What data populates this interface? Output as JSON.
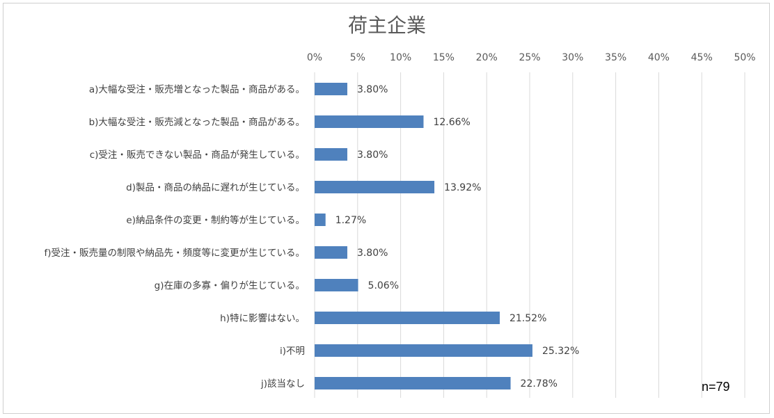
{
  "chart_data": {
    "type": "bar",
    "orientation": "horizontal",
    "title": "荷主企業",
    "categories": [
      "a)大幅な受注・販売増となった製品・商品がある。",
      "b)大幅な受注・販売減となった製品・商品がある。",
      "c)受注・販売できない製品・商品が発生している。",
      "d)製品・商品の納品に遅れが生じている。",
      "e)納品条件の変更・制約等が生じている。",
      "f)受注・販売量の制限や納品先・頻度等に変更が生じている。",
      "g)在庫の多寡・偏りが生じている。",
      "h)特に影響はない。",
      "i)不明",
      "j)該当なし"
    ],
    "values": [
      3.8,
      12.66,
      3.8,
      13.92,
      1.27,
      3.8,
      5.06,
      21.52,
      25.32,
      22.78
    ],
    "value_labels": [
      "3.80%",
      "12.66%",
      "3.80%",
      "13.92%",
      "1.27%",
      "3.80%",
      "5.06%",
      "21.52%",
      "25.32%",
      "22.78%"
    ],
    "x_ticks": [
      0,
      5,
      10,
      15,
      20,
      25,
      30,
      35,
      40,
      45,
      50
    ],
    "x_tick_labels": [
      "0%",
      "5%",
      "10%",
      "15%",
      "20%",
      "25%",
      "30%",
      "35%",
      "40%",
      "45%",
      "50%"
    ],
    "xlim": [
      0,
      50
    ],
    "xaxis_position": "top",
    "grid": true,
    "legend": "none",
    "bar_color": "#4f81bd",
    "annotation": "n=79"
  }
}
